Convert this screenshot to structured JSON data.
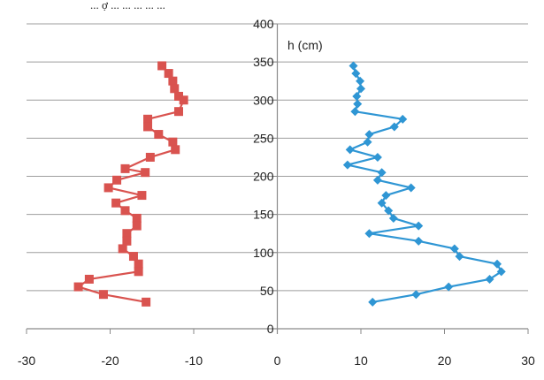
{
  "header_fragment": "... ợ ... ... ... ... ...",
  "chart_data": {
    "type": "line",
    "title": "",
    "xlabel": "",
    "ylabel": "h (cm)",
    "xlim": [
      -30,
      30
    ],
    "ylim": [
      0,
      400
    ],
    "x_ticks": [
      -30,
      -20,
      -10,
      0,
      10,
      20,
      30
    ],
    "y_ticks": [
      0,
      50,
      100,
      150,
      200,
      250,
      300,
      350,
      400
    ],
    "grid": "horizontal",
    "legend": "none",
    "series": [
      {
        "color": "#d9534f",
        "marker": "square",
        "points": [
          [
            -13.8,
            345
          ],
          [
            -13,
            335
          ],
          [
            -12.5,
            325
          ],
          [
            -12.3,
            315
          ],
          [
            -11.8,
            305
          ],
          [
            -11.2,
            300
          ],
          [
            -11.8,
            285
          ],
          [
            -15.5,
            275
          ],
          [
            -15.5,
            265
          ],
          [
            -14.2,
            255
          ],
          [
            -12.5,
            245
          ],
          [
            -12.2,
            235
          ],
          [
            -15.2,
            225
          ],
          [
            -18.2,
            210
          ],
          [
            -15.8,
            205
          ],
          [
            -19.2,
            195
          ],
          [
            -20.2,
            185
          ],
          [
            -16.2,
            175
          ],
          [
            -19.3,
            165
          ],
          [
            -18.2,
            155
          ],
          [
            -16.8,
            145
          ],
          [
            -16.8,
            135
          ],
          [
            -18,
            125
          ],
          [
            -18,
            115
          ],
          [
            -18.5,
            105
          ],
          [
            -17.2,
            95
          ],
          [
            -16.6,
            85
          ],
          [
            -16.6,
            75
          ],
          [
            -22.5,
            65
          ],
          [
            -23.8,
            55
          ],
          [
            -20.8,
            45
          ],
          [
            -15.7,
            35
          ]
        ]
      },
      {
        "color": "#2f96d4",
        "marker": "diamond",
        "points": [
          [
            9.1,
            345
          ],
          [
            9.4,
            335
          ],
          [
            9.9,
            325
          ],
          [
            10,
            315
          ],
          [
            9.5,
            305
          ],
          [
            9.6,
            295
          ],
          [
            9.3,
            285
          ],
          [
            15,
            275
          ],
          [
            14,
            265
          ],
          [
            11,
            255
          ],
          [
            10.8,
            245
          ],
          [
            8.7,
            235
          ],
          [
            12,
            225
          ],
          [
            8.4,
            215
          ],
          [
            12.5,
            205
          ],
          [
            12,
            195
          ],
          [
            16,
            185
          ],
          [
            13,
            175
          ],
          [
            12.5,
            165
          ],
          [
            13.3,
            155
          ],
          [
            13.9,
            145
          ],
          [
            16.9,
            135
          ],
          [
            11,
            125
          ],
          [
            16.9,
            115
          ],
          [
            21.2,
            105
          ],
          [
            21.8,
            95
          ],
          [
            26.3,
            85
          ],
          [
            26.8,
            75
          ],
          [
            25.4,
            65
          ],
          [
            20.5,
            55
          ],
          [
            16.6,
            45
          ],
          [
            11.4,
            35
          ]
        ]
      }
    ]
  }
}
